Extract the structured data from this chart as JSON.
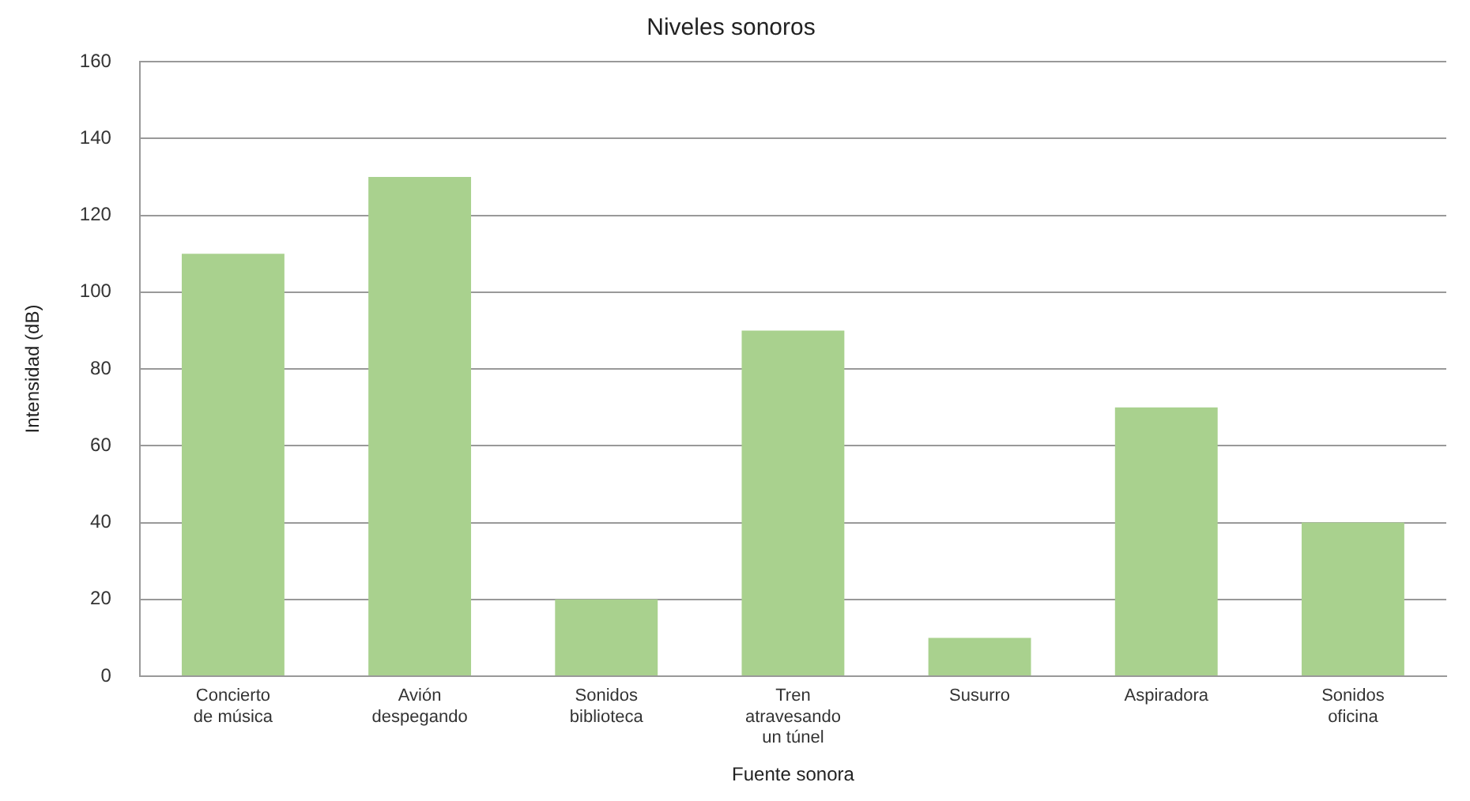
{
  "chart_data": {
    "type": "bar",
    "title": "Niveles sonoros",
    "xlabel": "Fuente sonora",
    "ylabel": "Intensidad (dB)",
    "categories": [
      "Concierto\nde música",
      "Avión\ndespegando",
      "Sonidos\nbiblioteca",
      "Tren\natravesando\nun túnel",
      "Susurro",
      "Aspiradora",
      "Sonidos\noficina"
    ],
    "values": [
      110,
      130,
      20,
      90,
      10,
      70,
      40
    ],
    "color": "#a9d18e",
    "ylim": [
      0,
      160
    ],
    "yticks": [
      0,
      20,
      40,
      60,
      80,
      100,
      120,
      140,
      160
    ],
    "grid": "y"
  }
}
